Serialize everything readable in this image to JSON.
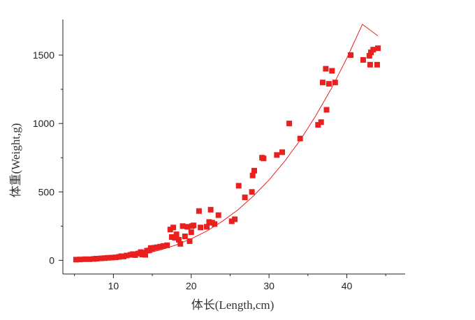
{
  "chart_data": {
    "type": "scatter",
    "title": "",
    "xlabel": "体长(Length,cm)",
    "ylabel": "体重(Weight,g)",
    "xlim": [
      3.5,
      47.5
    ],
    "ylim": [
      -100,
      1760
    ],
    "xticks": [
      10,
      20,
      30,
      40
    ],
    "yticks": [
      0,
      500,
      1000,
      1500
    ],
    "x_minor_ticks": [
      5,
      15,
      25,
      35,
      45
    ],
    "y_minor_ticks": [
      250,
      750,
      1250
    ],
    "grid": false,
    "legend": "none",
    "colors": {
      "points": "#e8211e",
      "fit": "#e8211e",
      "axes": "#222222"
    },
    "series": [
      {
        "kind": "points",
        "marker": "square",
        "x": [
          5.2,
          5.7,
          6.3,
          6.9,
          7.5,
          7.8,
          8.4,
          8.9,
          9.3,
          9.8,
          10.3,
          10.7,
          11.0,
          11.3,
          11.7,
          12.2,
          12.5,
          12.8,
          13.2,
          13.5,
          13.7,
          13.9,
          14.1,
          14.3,
          14.6,
          14.8,
          15.0,
          15.3,
          15.6,
          16.0,
          16.4,
          16.9,
          17.3,
          17.5,
          17.7,
          17.9,
          18.1,
          18.4,
          18.6,
          18.9,
          19.2,
          19.5,
          19.8,
          20.0,
          20.1,
          20.3,
          21.0,
          21.2,
          22.0,
          22.3,
          22.5,
          22.7,
          23.0,
          23.5,
          25.2,
          25.6,
          26.1,
          26.9,
          27.8,
          27.9,
          28.1,
          29.1,
          29.3,
          31.0,
          31.7,
          32.6,
          34.0,
          36.3,
          36.7,
          36.9,
          37.3,
          37.4,
          37.7,
          38.1,
          38.5,
          40.5,
          42.1,
          42.9,
          43.0,
          43.1,
          43.4,
          43.9,
          44.0
        ],
        "y": [
          5,
          6,
          8,
          8,
          10,
          12,
          14,
          16,
          18,
          20,
          22,
          25,
          30,
          28,
          35,
          40,
          45,
          38,
          50,
          60,
          42,
          55,
          40,
          70,
          72,
          90,
          85,
          92,
          95,
          100,
          105,
          110,
          225,
          170,
          240,
          165,
          190,
          150,
          120,
          250,
          175,
          245,
          140,
          205,
          250,
          255,
          360,
          240,
          245,
          280,
          370,
          275,
          265,
          330,
          285,
          300,
          545,
          460,
          500,
          620,
          655,
          750,
          745,
          770,
          790,
          1000,
          890,
          990,
          1010,
          1300,
          1400,
          1100,
          1290,
          1385,
          1300,
          1500,
          1465,
          1495,
          1430,
          1520,
          1540,
          1430,
          1550
        ]
      },
      {
        "kind": "fit",
        "x": [
          5.8,
          8,
          10,
          12,
          14,
          16,
          18,
          20,
          22,
          24,
          26,
          28,
          30,
          32,
          34,
          36,
          38,
          40,
          42,
          44
        ],
        "y": [
          1,
          6,
          15,
          29,
          48,
          75,
          111,
          157,
          214,
          285,
          369,
          470,
          587,
          723,
          878,
          1055,
          1254,
          1477,
          1725,
          1640
        ]
      }
    ]
  }
}
